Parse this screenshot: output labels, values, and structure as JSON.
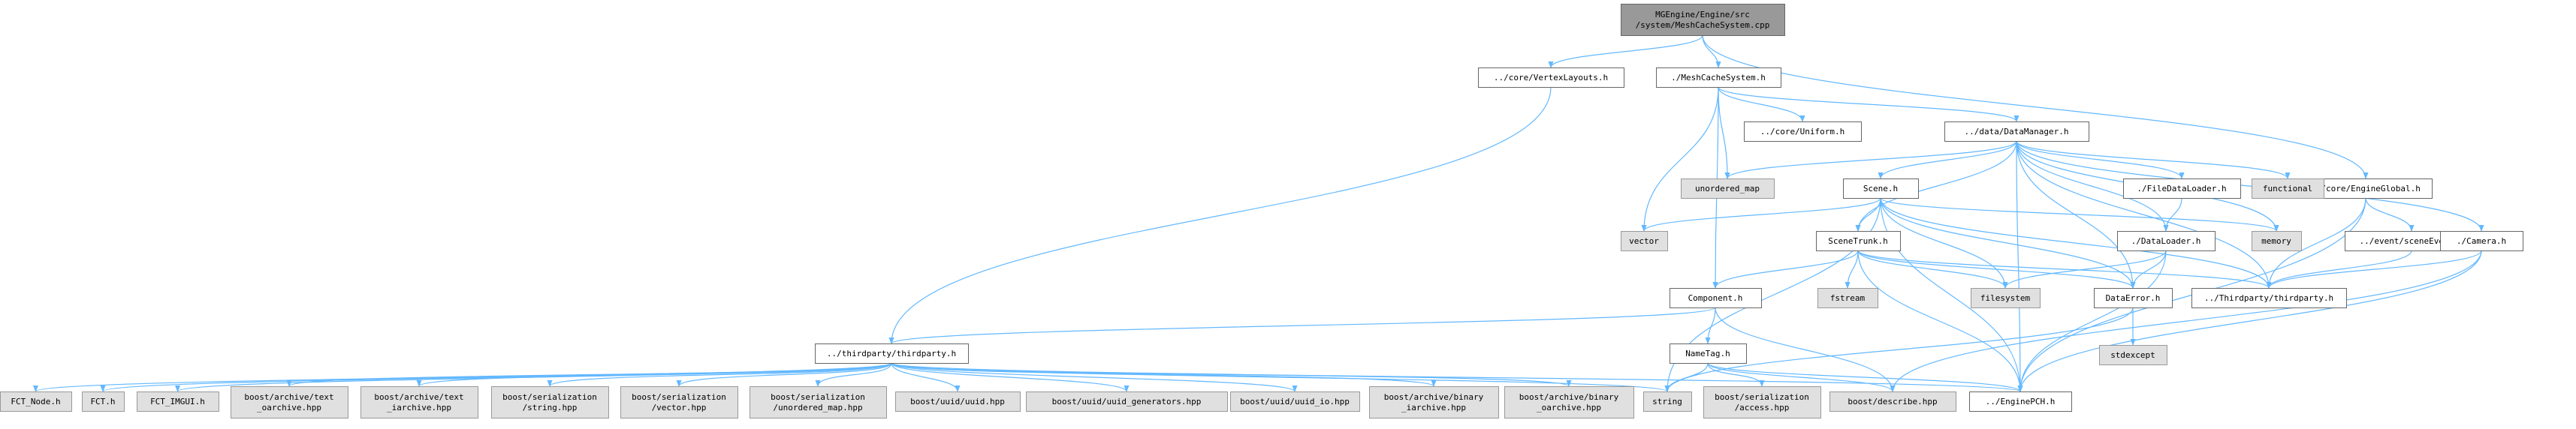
{
  "colors": {
    "root_fill": "#999999",
    "file_fill": "#ffffff",
    "external_fill": "#e0e0e0",
    "border": "#666666",
    "external_border": "#999999",
    "edge": "#63b8ff"
  },
  "nodes": [
    {
      "id": "root",
      "kind": "root",
      "lines": [
        "MGEngine/Engine/src",
        "/system/MeshCacheSystem.cpp"
      ]
    },
    {
      "id": "vertexlayouts",
      "kind": "file",
      "lines": [
        "../core/VertexLayouts.h"
      ]
    },
    {
      "id": "meshcachesystem",
      "kind": "file",
      "lines": [
        "./MeshCacheSystem.h"
      ]
    },
    {
      "id": "uniform",
      "kind": "file",
      "lines": [
        "../core/Uniform.h"
      ]
    },
    {
      "id": "datamanager",
      "kind": "file",
      "lines": [
        "../data/DataManager.h"
      ]
    },
    {
      "id": "engineglobal",
      "kind": "file",
      "lines": [
        "../core/EngineGlobal.h"
      ]
    },
    {
      "id": "unordered_map",
      "kind": "external",
      "lines": [
        "unordered_map"
      ]
    },
    {
      "id": "scene",
      "kind": "file",
      "lines": [
        "Scene.h"
      ]
    },
    {
      "id": "filedataloader",
      "kind": "file",
      "lines": [
        "./FileDataLoader.h"
      ]
    },
    {
      "id": "functional",
      "kind": "external",
      "lines": [
        "functional"
      ]
    },
    {
      "id": "memory",
      "kind": "external",
      "lines": [
        "memory"
      ]
    },
    {
      "id": "vector",
      "kind": "external",
      "lines": [
        "vector"
      ]
    },
    {
      "id": "scenetrunk",
      "kind": "file",
      "lines": [
        "SceneTrunk.h"
      ]
    },
    {
      "id": "dataloader",
      "kind": "file",
      "lines": [
        "./DataLoader.h"
      ]
    },
    {
      "id": "sceneevent",
      "kind": "file",
      "lines": [
        "../event/sceneEvent.h"
      ]
    },
    {
      "id": "camera",
      "kind": "file",
      "lines": [
        "./Camera.h"
      ]
    },
    {
      "id": "component",
      "kind": "file",
      "lines": [
        "Component.h"
      ]
    },
    {
      "id": "fstream",
      "kind": "external",
      "lines": [
        "fstream"
      ]
    },
    {
      "id": "filesystem",
      "kind": "external",
      "lines": [
        "filesystem"
      ]
    },
    {
      "id": "dataerror",
      "kind": "file",
      "lines": [
        "DataError.h"
      ]
    },
    {
      "id": "thirdparty_caps",
      "kind": "file",
      "lines": [
        "../Thirdparty/thirdparty.h"
      ]
    },
    {
      "id": "stdexcept",
      "kind": "external",
      "lines": [
        "stdexcept"
      ]
    },
    {
      "id": "thirdparty",
      "kind": "file",
      "lines": [
        "../thirdparty/thirdparty.h"
      ]
    },
    {
      "id": "nametag",
      "kind": "file",
      "lines": [
        "NameTag.h"
      ]
    },
    {
      "id": "fct_node",
      "kind": "external",
      "lines": [
        "FCT_Node.h"
      ]
    },
    {
      "id": "fct",
      "kind": "external",
      "lines": [
        "FCT.h"
      ]
    },
    {
      "id": "fct_imgui",
      "kind": "external",
      "lines": [
        "FCT_IMGUI.h"
      ]
    },
    {
      "id": "text_oarchive",
      "kind": "external",
      "lines": [
        "boost/archive/text",
        "_oarchive.hpp"
      ]
    },
    {
      "id": "text_iarchive",
      "kind": "external",
      "lines": [
        "boost/archive/text",
        "_iarchive.hpp"
      ]
    },
    {
      "id": "ser_string",
      "kind": "external",
      "lines": [
        "boost/serialization",
        "/string.hpp"
      ]
    },
    {
      "id": "ser_vector",
      "kind": "external",
      "lines": [
        "boost/serialization",
        "/vector.hpp"
      ]
    },
    {
      "id": "ser_unordered_map",
      "kind": "external",
      "lines": [
        "boost/serialization",
        "/unordered_map.hpp"
      ]
    },
    {
      "id": "uuid",
      "kind": "external",
      "lines": [
        "boost/uuid/uuid.hpp"
      ]
    },
    {
      "id": "uuid_generators",
      "kind": "external",
      "lines": [
        "boost/uuid/uuid_generators.hpp"
      ]
    },
    {
      "id": "uuid_io",
      "kind": "external",
      "lines": [
        "boost/uuid/uuid_io.hpp"
      ]
    },
    {
      "id": "binary_iarchive",
      "kind": "external",
      "lines": [
        "boost/archive/binary",
        "_iarchive.hpp"
      ]
    },
    {
      "id": "binary_oarchive",
      "kind": "external",
      "lines": [
        "boost/archive/binary",
        "_oarchive.hpp"
      ]
    },
    {
      "id": "string",
      "kind": "external",
      "lines": [
        "string"
      ]
    },
    {
      "id": "ser_access",
      "kind": "external",
      "lines": [
        "boost/serialization",
        "/access.hpp"
      ]
    },
    {
      "id": "describe",
      "kind": "external",
      "lines": [
        "boost/describe.hpp"
      ]
    },
    {
      "id": "enginepch",
      "kind": "file",
      "lines": [
        "../EnginePCH.h"
      ]
    }
  ],
  "edges": [
    [
      "root",
      "vertexlayouts"
    ],
    [
      "root",
      "meshcachesystem"
    ],
    [
      "root",
      "engineglobal"
    ],
    [
      "vertexlayouts",
      "thirdparty"
    ],
    [
      "meshcachesystem",
      "uniform"
    ],
    [
      "meshcachesystem",
      "datamanager"
    ],
    [
      "meshcachesystem",
      "unordered_map"
    ],
    [
      "meshcachesystem",
      "vector"
    ],
    [
      "meshcachesystem",
      "component"
    ],
    [
      "datamanager",
      "unordered_map"
    ],
    [
      "datamanager",
      "scene"
    ],
    [
      "datamanager",
      "filedataloader"
    ],
    [
      "datamanager",
      "functional"
    ],
    [
      "datamanager",
      "memory"
    ],
    [
      "datamanager",
      "camera"
    ],
    [
      "datamanager",
      "thirdparty_caps"
    ],
    [
      "datamanager",
      "enginepch"
    ],
    [
      "datamanager",
      "dataloader"
    ],
    [
      "datamanager",
      "dataerror"
    ],
    [
      "datamanager",
      "scenetrunk"
    ],
    [
      "engineglobal",
      "sceneevent"
    ],
    [
      "engineglobal",
      "thirdparty_caps"
    ],
    [
      "engineglobal",
      "enginepch"
    ],
    [
      "sceneevent",
      "thirdparty_caps"
    ],
    [
      "scene",
      "vector"
    ],
    [
      "scene",
      "memory"
    ],
    [
      "scene",
      "scenetrunk"
    ],
    [
      "scene",
      "filesystem"
    ],
    [
      "scene",
      "dataerror"
    ],
    [
      "scene",
      "thirdparty_caps"
    ],
    [
      "scene",
      "string"
    ],
    [
      "scene",
      "enginepch"
    ],
    [
      "filedataloader",
      "dataloader"
    ],
    [
      "scenetrunk",
      "component"
    ],
    [
      "scenetrunk",
      "fstream"
    ],
    [
      "scenetrunk",
      "filesystem"
    ],
    [
      "scenetrunk",
      "dataerror"
    ],
    [
      "scenetrunk",
      "thirdparty_caps"
    ],
    [
      "scenetrunk",
      "enginepch"
    ],
    [
      "dataloader",
      "filesystem"
    ],
    [
      "dataloader",
      "dataerror"
    ],
    [
      "dataloader",
      "enginepch"
    ],
    [
      "dataerror",
      "stdexcept"
    ],
    [
      "dataerror",
      "string"
    ],
    [
      "camera",
      "thirdparty_caps"
    ],
    [
      "camera",
      "enginepch"
    ],
    [
      "camera",
      "describe"
    ],
    [
      "component",
      "thirdparty"
    ],
    [
      "component",
      "nametag"
    ],
    [
      "component",
      "describe"
    ],
    [
      "nametag",
      "string"
    ],
    [
      "nametag",
      "ser_access"
    ],
    [
      "nametag",
      "describe"
    ],
    [
      "nametag",
      "enginepch"
    ],
    [
      "thirdparty",
      "fct_node"
    ],
    [
      "thirdparty",
      "fct"
    ],
    [
      "thirdparty",
      "fct_imgui"
    ],
    [
      "thirdparty",
      "text_oarchive"
    ],
    [
      "thirdparty",
      "text_iarchive"
    ],
    [
      "thirdparty",
      "ser_string"
    ],
    [
      "thirdparty",
      "ser_vector"
    ],
    [
      "thirdparty",
      "ser_unordered_map"
    ],
    [
      "thirdparty",
      "uuid"
    ],
    [
      "thirdparty",
      "uuid_generators"
    ],
    [
      "thirdparty",
      "uuid_io"
    ],
    [
      "thirdparty",
      "binary_iarchive"
    ],
    [
      "thirdparty",
      "binary_oarchive"
    ],
    [
      "thirdparty",
      "string"
    ],
    [
      "thirdparty",
      "enginepch"
    ]
  ]
}
